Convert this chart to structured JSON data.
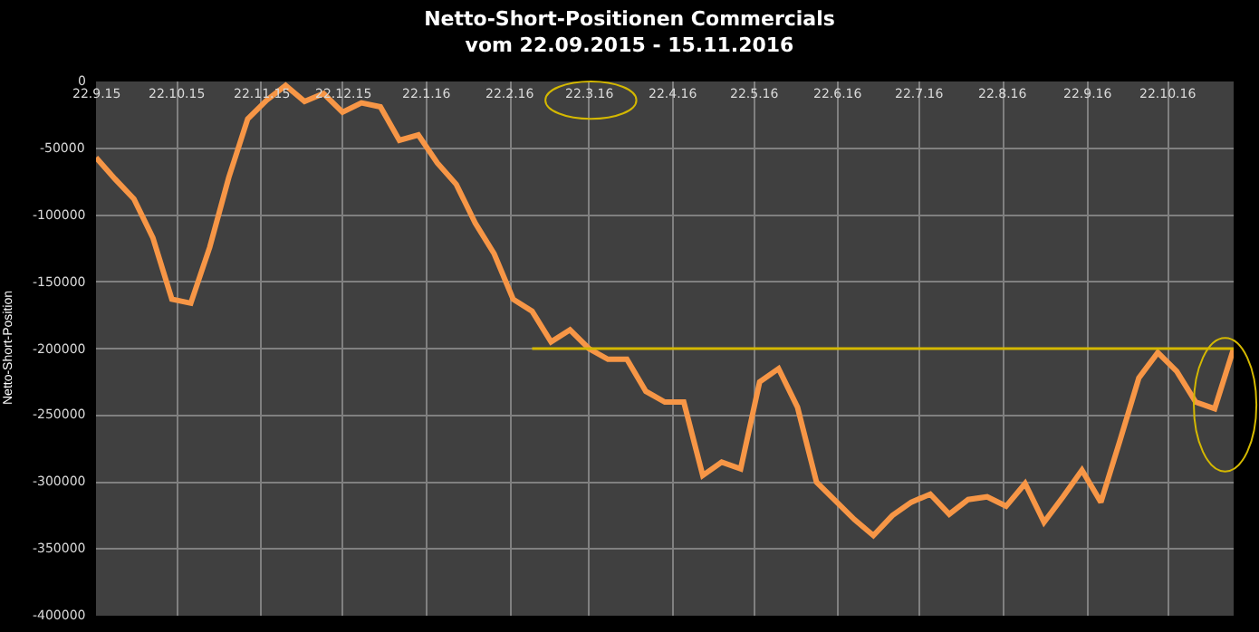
{
  "chart_data": {
    "type": "line",
    "title": "Netto-Short-Positionen Commercials",
    "subtitle": "vom 22.09.2015 - 15.11.2016",
    "ylabel": "Netto-Short-Position",
    "x": [
      "2015-09-22",
      "2015-09-29",
      "2015-10-06",
      "2015-10-13",
      "2015-10-20",
      "2015-10-27",
      "2015-11-03",
      "2015-11-10",
      "2015-11-17",
      "2015-11-24",
      "2015-12-01",
      "2015-12-08",
      "2015-12-15",
      "2015-12-22",
      "2015-12-29",
      "2016-01-05",
      "2016-01-12",
      "2016-01-19",
      "2016-01-26",
      "2016-02-02",
      "2016-02-09",
      "2016-02-16",
      "2016-02-23",
      "2016-03-01",
      "2016-03-08",
      "2016-03-15",
      "2016-03-22",
      "2016-03-29",
      "2016-04-05",
      "2016-04-12",
      "2016-04-19",
      "2016-04-26",
      "2016-05-03",
      "2016-05-10",
      "2016-05-17",
      "2016-05-24",
      "2016-05-31",
      "2016-06-07",
      "2016-06-14",
      "2016-06-21",
      "2016-06-28",
      "2016-07-05",
      "2016-07-12",
      "2016-07-19",
      "2016-07-26",
      "2016-08-02",
      "2016-08-09",
      "2016-08-16",
      "2016-08-23",
      "2016-08-30",
      "2016-09-06",
      "2016-09-13",
      "2016-09-20",
      "2016-09-27",
      "2016-10-04",
      "2016-10-11",
      "2016-10-18",
      "2016-10-25",
      "2016-11-01",
      "2016-11-08",
      "2016-11-15"
    ],
    "series": [
      {
        "color": "#f79646",
        "values": [
          -57000,
          -73000,
          -88000,
          -117000,
          -163000,
          -166000,
          -124000,
          -72000,
          -28000,
          -14000,
          -3000,
          -15000,
          -9000,
          -23000,
          -16000,
          -19000,
          -44000,
          -40000,
          -61000,
          -77000,
          -106000,
          -129000,
          -163000,
          -172000,
          -195000,
          -186000,
          -200000,
          -208000,
          -208000,
          -232000,
          -240000,
          -240000,
          -295000,
          -285000,
          -290000,
          -225000,
          -215000,
          -244000,
          -300000,
          -314000,
          -328000,
          -340000,
          -325000,
          -315000,
          -309000,
          -324000,
          -313000,
          -311000,
          -318000,
          -301000,
          -330000,
          -311000,
          -291000,
          -315000,
          -269000,
          -222000,
          -203000,
          -217000,
          -240000,
          -245000,
          -200000
        ]
      },
      {
        "type": "line",
        "color": "#d4b800",
        "x": [
          "2016-03-01",
          "2016-11-15"
        ],
        "values": [
          -200000,
          -200000
        ]
      }
    ],
    "xlim": [
      "2015-09-22",
      "2016-11-15"
    ],
    "xticks": [
      {
        "value": "2015-09-22",
        "label": "22.9.15"
      },
      {
        "value": "2015-10-22",
        "label": "22.10.15"
      },
      {
        "value": "2015-11-22",
        "label": "22.11.15"
      },
      {
        "value": "2015-12-22",
        "label": "22.12.15"
      },
      {
        "value": "2016-01-22",
        "label": "22.1.16"
      },
      {
        "value": "2016-02-22",
        "label": "22.2.16"
      },
      {
        "value": "2016-03-22",
        "label": "22.3.16"
      },
      {
        "value": "2016-04-22",
        "label": "22.4.16"
      },
      {
        "value": "2016-05-22",
        "label": "22.5.16"
      },
      {
        "value": "2016-06-22",
        "label": "22.6.16"
      },
      {
        "value": "2016-07-22",
        "label": "22.7.16"
      },
      {
        "value": "2016-08-22",
        "label": "22.8.16"
      },
      {
        "value": "2016-09-22",
        "label": "22.9.16"
      },
      {
        "value": "2016-10-22",
        "label": "22.10.16"
      }
    ],
    "ylim": [
      -400000,
      0
    ],
    "yticks": [
      0,
      -50000,
      -100000,
      -150000,
      -200000,
      -250000,
      -300000,
      -350000,
      -400000
    ],
    "grid": true
  }
}
